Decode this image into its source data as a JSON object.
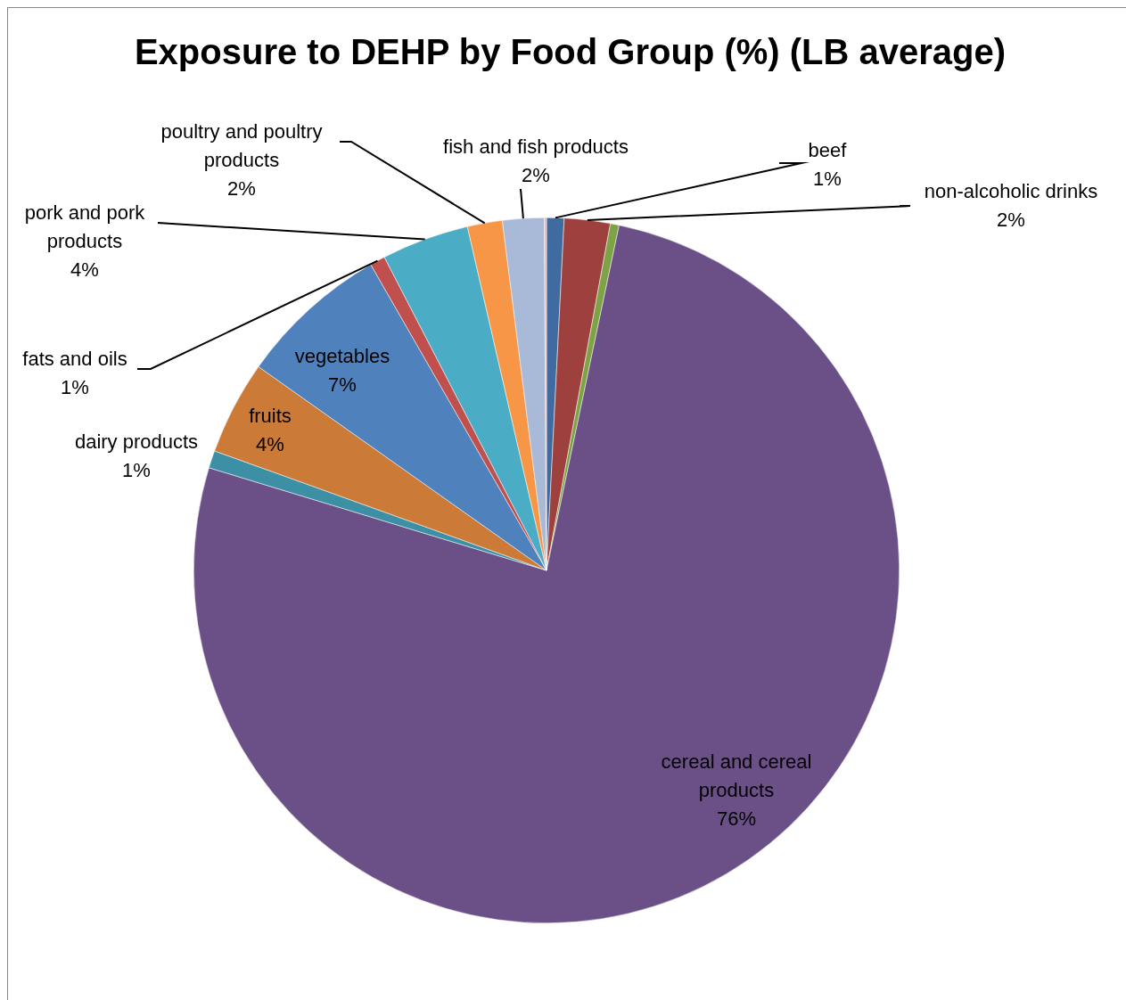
{
  "chart_data": {
    "type": "pie",
    "title": "Exposure to DEHP by Food Group (%) (LB average)",
    "categories": [
      "beef",
      "non-alcoholic drinks",
      null,
      "cereal and cereal products",
      "dairy products",
      "fruits",
      "vegetables",
      "fats and oils",
      "pork and pork products",
      "poultry and poultry products",
      "fish and fish products",
      null
    ],
    "values": [
      0.8,
      2.1,
      0.4,
      76.4,
      0.8,
      4.3,
      6.9,
      0.7,
      4.0,
      1.6,
      1.9,
      0.1
    ],
    "value_labels": [
      "1%",
      "2%",
      null,
      "76%",
      "1%",
      "4%",
      "7%",
      "1%",
      "4%",
      "2%",
      "2%",
      null
    ],
    "colors": [
      "#3f6ba0",
      "#9e413e",
      "#7ea346",
      "#6a5086",
      "#3d8fa5",
      "#cc7a38",
      "#4f81bd",
      "#c0504d",
      "#4bacc6",
      "#f79646",
      "#a9b9d8",
      "#e6b9b8"
    ],
    "legend": false
  }
}
